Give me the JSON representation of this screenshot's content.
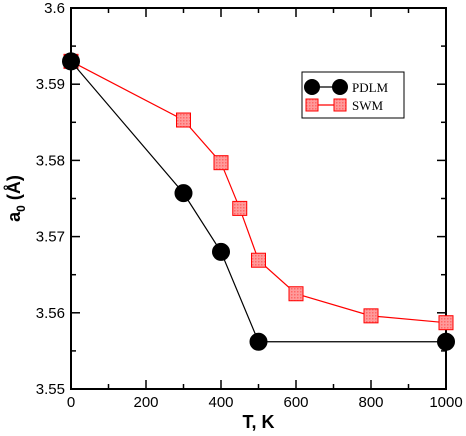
{
  "chart_data": {
    "type": "line",
    "xlabel": "T, K",
    "ylabel_main": "a",
    "ylabel_sub": "0",
    "ylabel_unit": " (Å)",
    "xlim": [
      0,
      1000
    ],
    "ylim": [
      3.55,
      3.6
    ],
    "x_ticks": [
      0,
      200,
      400,
      600,
      800,
      1000
    ],
    "x_tick_labels": [
      "0",
      "200",
      "400",
      "600",
      "800",
      "1000"
    ],
    "y_ticks": [
      3.55,
      3.56,
      3.57,
      3.58,
      3.59,
      3.6
    ],
    "y_tick_labels": [
      "3.55",
      "3.56",
      "3.57",
      "3.58",
      "3.59",
      "3.6"
    ],
    "x_minor_step": 100,
    "y_minor_step": 0.005,
    "grid": false,
    "legend_position": "top-right",
    "series": [
      {
        "name": "PDLM",
        "marker": "circle",
        "line_color": "#000000",
        "marker_fill": "#000000",
        "x": [
          0,
          300,
          400,
          500,
          1000
        ],
        "y": [
          3.593,
          3.5757,
          3.568,
          3.5562,
          3.5562
        ]
      },
      {
        "name": "SWM",
        "marker": "square",
        "line_color": "#ff0000",
        "marker_fill": "#ff8080",
        "x": [
          0,
          300,
          400,
          450,
          500,
          600,
          800,
          1000
        ],
        "y": [
          3.593,
          3.5853,
          3.5797,
          3.5737,
          3.5669,
          3.5625,
          3.5596,
          3.5587
        ]
      }
    ]
  }
}
